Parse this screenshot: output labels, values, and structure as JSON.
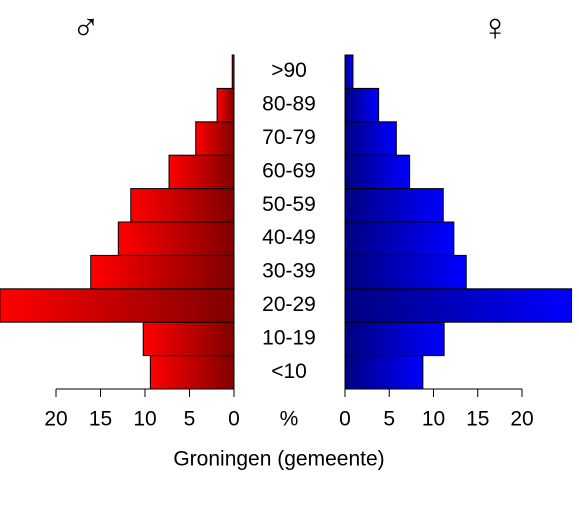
{
  "chart_data": {
    "type": "pyramid",
    "title": "Groningen (gemeente)",
    "axis_label": "%",
    "categories": [
      "<10",
      "10-19",
      "20-29",
      "30-39",
      "40-49",
      "50-59",
      "60-69",
      "70-79",
      "80-89",
      ">90"
    ],
    "series": [
      {
        "name": "♂",
        "color": "#ff0000",
        "values": [
          9.4,
          10.2,
          26.3,
          16.1,
          13.0,
          11.6,
          7.3,
          4.3,
          1.9,
          0.2
        ]
      },
      {
        "name": "♀",
        "color": "#0000ff",
        "values": [
          8.8,
          11.2,
          25.6,
          13.7,
          12.3,
          11.1,
          7.3,
          5.8,
          3.8,
          0.9
        ]
      }
    ],
    "xlim": [
      0,
      20
    ],
    "xticks": [
      0,
      5,
      10,
      15,
      20
    ]
  }
}
